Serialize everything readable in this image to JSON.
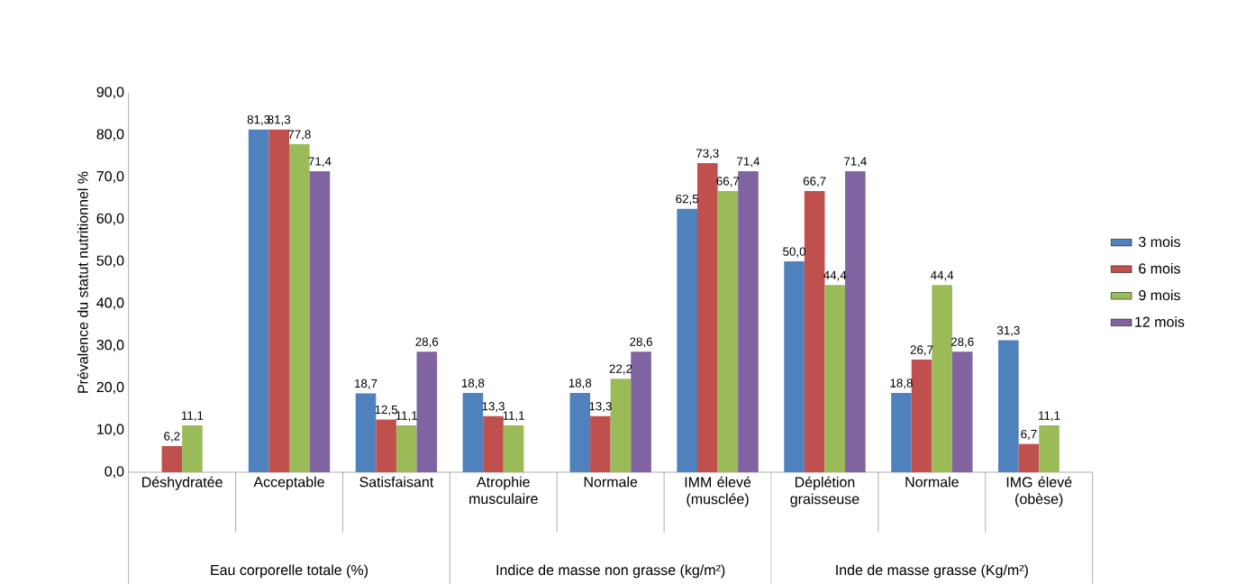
{
  "chart_data": {
    "type": "bar",
    "ylabel": "Prévalence du statut nutritionnel %",
    "categories": [
      "Déshydratée",
      "Acceptable",
      "Satisfaisant",
      "Atrophie musculaire",
      "Normale",
      "IMM élevé (musclée)",
      "Déplétion graisseuse",
      "Normale",
      "IMG élevé (obèse)"
    ],
    "annotations": [
      "Eau corporelle totale (%)",
      "Indice de masse non grasse (kg/m²)",
      "Inde de masse grasse (Kg/m²)"
    ],
    "series": [
      {
        "name": "3 mois",
        "color": "#4f81bd",
        "values": [
          null,
          81.3,
          18.7,
          18.8,
          18.8,
          62.5,
          50.0,
          18.8,
          31.3
        ],
        "value_labels": [
          null,
          "81,3",
          "18,7",
          "18,8",
          "18,8",
          "62,5",
          "50,0",
          "18,8",
          "31,3"
        ]
      },
      {
        "name": "6 mois",
        "color": "#c0504d",
        "values": [
          6.2,
          81.3,
          12.5,
          13.3,
          13.3,
          73.3,
          66.7,
          26.7,
          6.7
        ],
        "value_labels": [
          "6,2",
          "81,3",
          "12,5",
          "13,3",
          "13,3",
          "73,3",
          "66,7",
          "26,7",
          "6,7"
        ]
      },
      {
        "name": "9 mois",
        "color": "#9bbb59",
        "values": [
          11.1,
          77.8,
          11.1,
          11.1,
          22.2,
          66.7,
          44.4,
          44.4,
          11.1
        ],
        "value_labels": [
          "11,1",
          "77,8",
          "11,1",
          "11,1",
          "22,2",
          "66,7",
          "44,4",
          "44,4",
          "11,1"
        ]
      },
      {
        "name": "12 mois",
        "color": "#8064a2",
        "values": [
          null,
          71.4,
          28.6,
          null,
          28.6,
          71.4,
          71.4,
          28.6,
          null
        ],
        "value_labels": [
          null,
          "71,4",
          "28,6",
          null,
          "28,6",
          "71,4",
          "71,4",
          "28,6",
          null
        ]
      }
    ],
    "ylim": [
      0,
      90
    ],
    "yticks": [
      {
        "value": 0,
        "label": "0,0"
      },
      {
        "value": 10,
        "label": "10,0"
      },
      {
        "value": 20,
        "label": "20,0"
      },
      {
        "value": 30,
        "label": "30,0"
      },
      {
        "value": 40,
        "label": "40,0"
      },
      {
        "value": 50,
        "label": "50,0"
      },
      {
        "value": 60,
        "label": "60,0"
      },
      {
        "value": 70,
        "label": "70,0"
      },
      {
        "value": 80,
        "label": "80,0"
      },
      {
        "value": 90,
        "label": "90,0"
      }
    ],
    "legend": "right",
    "grid": false
  }
}
